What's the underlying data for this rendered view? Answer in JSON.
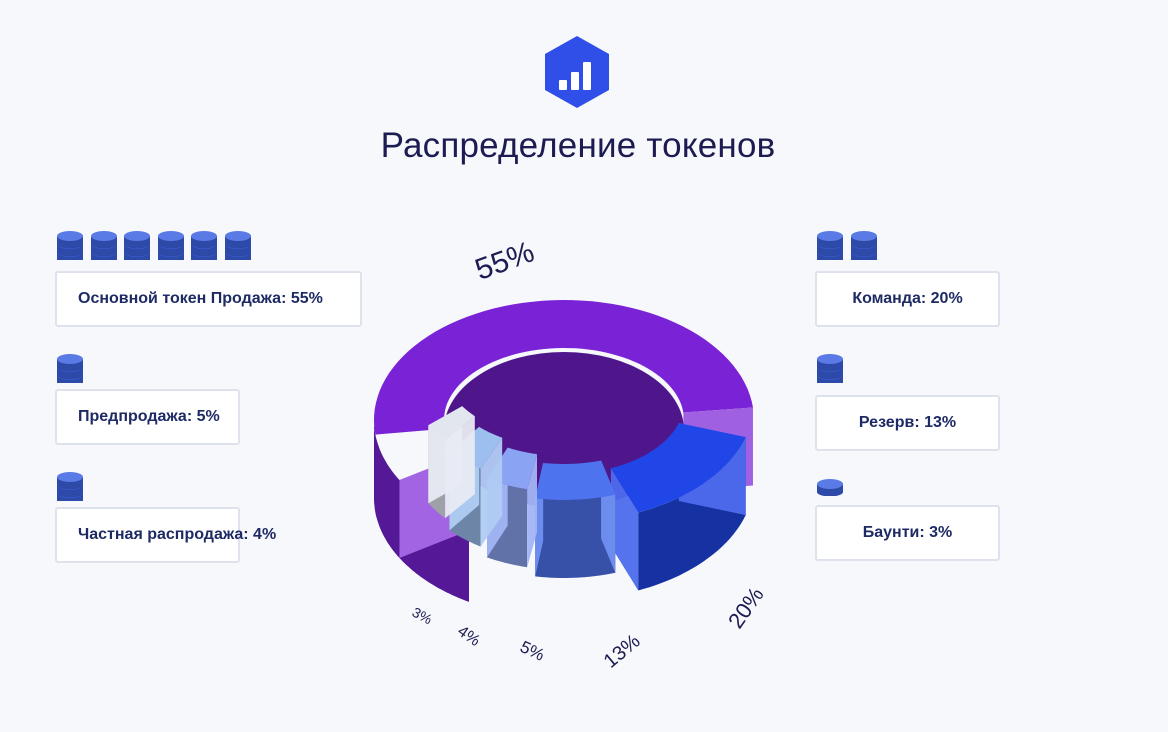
{
  "header": {
    "title": "Распределение токенов"
  },
  "colors": {
    "main_sale": "#7a22d6",
    "team": "#2046e8",
    "reserve": "#4d74ee",
    "presale": "#8aa3f2",
    "private_sale": "#9cbff0",
    "bounty": "#e2e6ef",
    "coin": "#3d62e0"
  },
  "icons": {
    "logo": "bar-chart-icon",
    "coin": "coin-stack-icon"
  },
  "legend": {
    "main_sale": "Основной токен Продажа: 55%",
    "presale": "Предпродажа: 5%",
    "private_sale": "Частная распродажа: 4%",
    "team": "Команда: 20%",
    "reserve": "Резерв: 13%",
    "bounty": "Баунти: 3%"
  },
  "coin_counts": {
    "main_sale": 6,
    "presale": 1,
    "private_sale": 1,
    "team": 2,
    "reserve": 1,
    "bounty": 0.5
  },
  "chart_data": {
    "type": "pie",
    "style": "3d-donut",
    "categories": [
      "Основной токен Продажа",
      "Команда",
      "Резерв",
      "Предпродажа",
      "Частная распродажа",
      "Баунти"
    ],
    "values": [
      55,
      20,
      13,
      5,
      4,
      3
    ],
    "labels": [
      "55%",
      "20%",
      "13%",
      "5%",
      "4%",
      "3%"
    ]
  }
}
